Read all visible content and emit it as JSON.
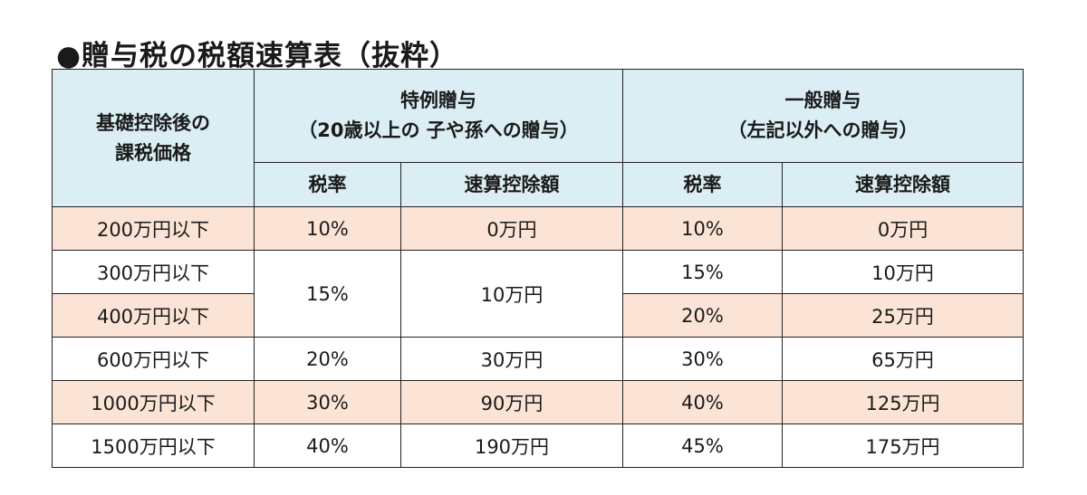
{
  "title": "●贈与税の税額速算表（抜粋）",
  "header": {
    "base_label": [
      "基礎控除後の",
      "課税価格"
    ],
    "special": {
      "title": "特例贈与",
      "subtitle": "（20歳以上の 子や孫への贈与）"
    },
    "general": {
      "title": "一般贈与",
      "subtitle": "（左記以外への贈与）"
    },
    "rate_label": "税率",
    "deduction_label": "速算控除額"
  },
  "rows": [
    {
      "price": "200万円以下",
      "sp_rate": "10%",
      "sp_deduction": "0万円",
      "gen_rate": "10%",
      "gen_deduction": "0万円"
    },
    {
      "price": "300万円以下",
      "sp_rate": "15%",
      "sp_deduction": "10万円",
      "gen_rate": "15%",
      "gen_deduction": "10万円"
    },
    {
      "price": "400万円以下",
      "gen_rate": "20%",
      "gen_deduction": "25万円"
    },
    {
      "price": "600万円以下",
      "sp_rate": "20%",
      "sp_deduction": "30万円",
      "gen_rate": "30%",
      "gen_deduction": "65万円"
    },
    {
      "price": "1000万円以下",
      "sp_rate": "30%",
      "sp_deduction": "90万円",
      "gen_rate": "40%",
      "gen_deduction": "125万円"
    },
    {
      "price": "1500万円以下",
      "sp_rate": "40%",
      "sp_deduction": "190万円",
      "gen_rate": "45%",
      "gen_deduction": "175万円"
    }
  ],
  "colors": {
    "header_bg": "#daeef3",
    "band_bg": "#fbe4d5",
    "border": "#222222"
  }
}
